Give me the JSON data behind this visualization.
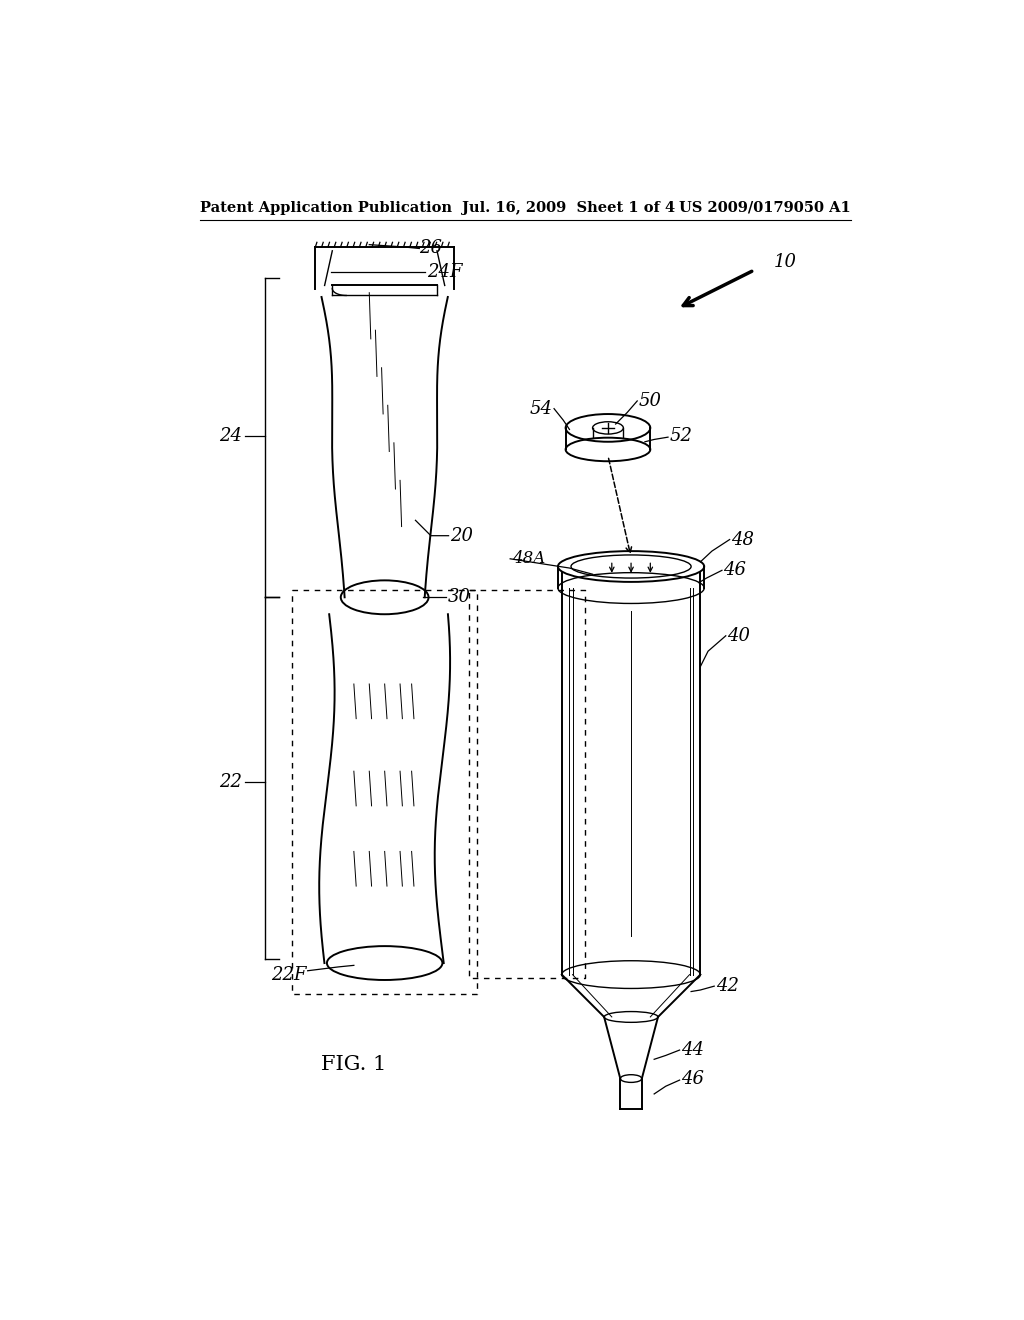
{
  "title_left": "Patent Application Publication",
  "title_mid": "Jul. 16, 2009  Sheet 1 of 4",
  "title_right": "US 2009/0179050 A1",
  "fig_label": "FIG. 1",
  "bg_color": "#ffffff",
  "line_color": "#000000",
  "label_fontsize": 12,
  "header_fontsize": 10.5,
  "fig_label_fontsize": 15
}
